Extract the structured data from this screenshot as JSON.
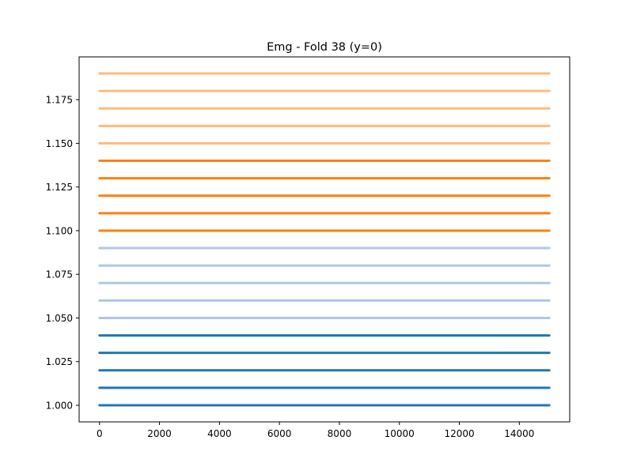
{
  "chart_data": {
    "type": "line",
    "title": "Emg - Fold 38 (y=0)",
    "xlabel": "",
    "ylabel": "",
    "xlim": [
      -680,
      15680
    ],
    "ylim": [
      0.9905,
      1.1995
    ],
    "x_ticks": [
      0,
      2000,
      4000,
      6000,
      8000,
      10000,
      12000,
      14000
    ],
    "x_tick_labels": [
      "0",
      "2000",
      "4000",
      "6000",
      "8000",
      "10000",
      "12000",
      "14000"
    ],
    "y_ticks": [
      1.0,
      1.025,
      1.05,
      1.075,
      1.1,
      1.125,
      1.15,
      1.175
    ],
    "y_tick_labels": [
      "1.000",
      "1.025",
      "1.050",
      "1.075",
      "1.100",
      "1.125",
      "1.150",
      "1.175"
    ],
    "grid": false,
    "legend": "none",
    "series": [
      {
        "values": [
          1.0,
          1.0
        ],
        "x": [
          0,
          15000
        ],
        "color": "#1f77b4"
      },
      {
        "values": [
          1.01,
          1.01
        ],
        "x": [
          0,
          15000
        ],
        "color": "#1f77b4"
      },
      {
        "values": [
          1.02,
          1.02
        ],
        "x": [
          0,
          15000
        ],
        "color": "#1f77b4"
      },
      {
        "values": [
          1.03,
          1.03
        ],
        "x": [
          0,
          15000
        ],
        "color": "#1f77b4"
      },
      {
        "values": [
          1.04,
          1.04
        ],
        "x": [
          0,
          15000
        ],
        "color": "#1f77b4"
      },
      {
        "values": [
          1.05,
          1.05
        ],
        "x": [
          0,
          15000
        ],
        "color": "#aec7e8"
      },
      {
        "values": [
          1.06,
          1.06
        ],
        "x": [
          0,
          15000
        ],
        "color": "#aec7e8"
      },
      {
        "values": [
          1.07,
          1.07
        ],
        "x": [
          0,
          15000
        ],
        "color": "#aec7e8"
      },
      {
        "values": [
          1.08,
          1.08
        ],
        "x": [
          0,
          15000
        ],
        "color": "#aec7e8"
      },
      {
        "values": [
          1.09,
          1.09
        ],
        "x": [
          0,
          15000
        ],
        "color": "#aec7e8"
      },
      {
        "values": [
          1.1,
          1.1
        ],
        "x": [
          0,
          15000
        ],
        "color": "#ff7f0e"
      },
      {
        "values": [
          1.11,
          1.11
        ],
        "x": [
          0,
          15000
        ],
        "color": "#ff7f0e"
      },
      {
        "values": [
          1.12,
          1.12
        ],
        "x": [
          0,
          15000
        ],
        "color": "#ff7f0e"
      },
      {
        "values": [
          1.13,
          1.13
        ],
        "x": [
          0,
          15000
        ],
        "color": "#ff7f0e"
      },
      {
        "values": [
          1.14,
          1.14
        ],
        "x": [
          0,
          15000
        ],
        "color": "#ff7f0e"
      },
      {
        "values": [
          1.15,
          1.15
        ],
        "x": [
          0,
          15000
        ],
        "color": "#ffbb78"
      },
      {
        "values": [
          1.16,
          1.16
        ],
        "x": [
          0,
          15000
        ],
        "color": "#ffbb78"
      },
      {
        "values": [
          1.17,
          1.17
        ],
        "x": [
          0,
          15000
        ],
        "color": "#ffbb78"
      },
      {
        "values": [
          1.18,
          1.18
        ],
        "x": [
          0,
          15000
        ],
        "color": "#ffbb78"
      },
      {
        "values": [
          1.19,
          1.19
        ],
        "x": [
          0,
          15000
        ],
        "color": "#ffbb78"
      }
    ]
  }
}
